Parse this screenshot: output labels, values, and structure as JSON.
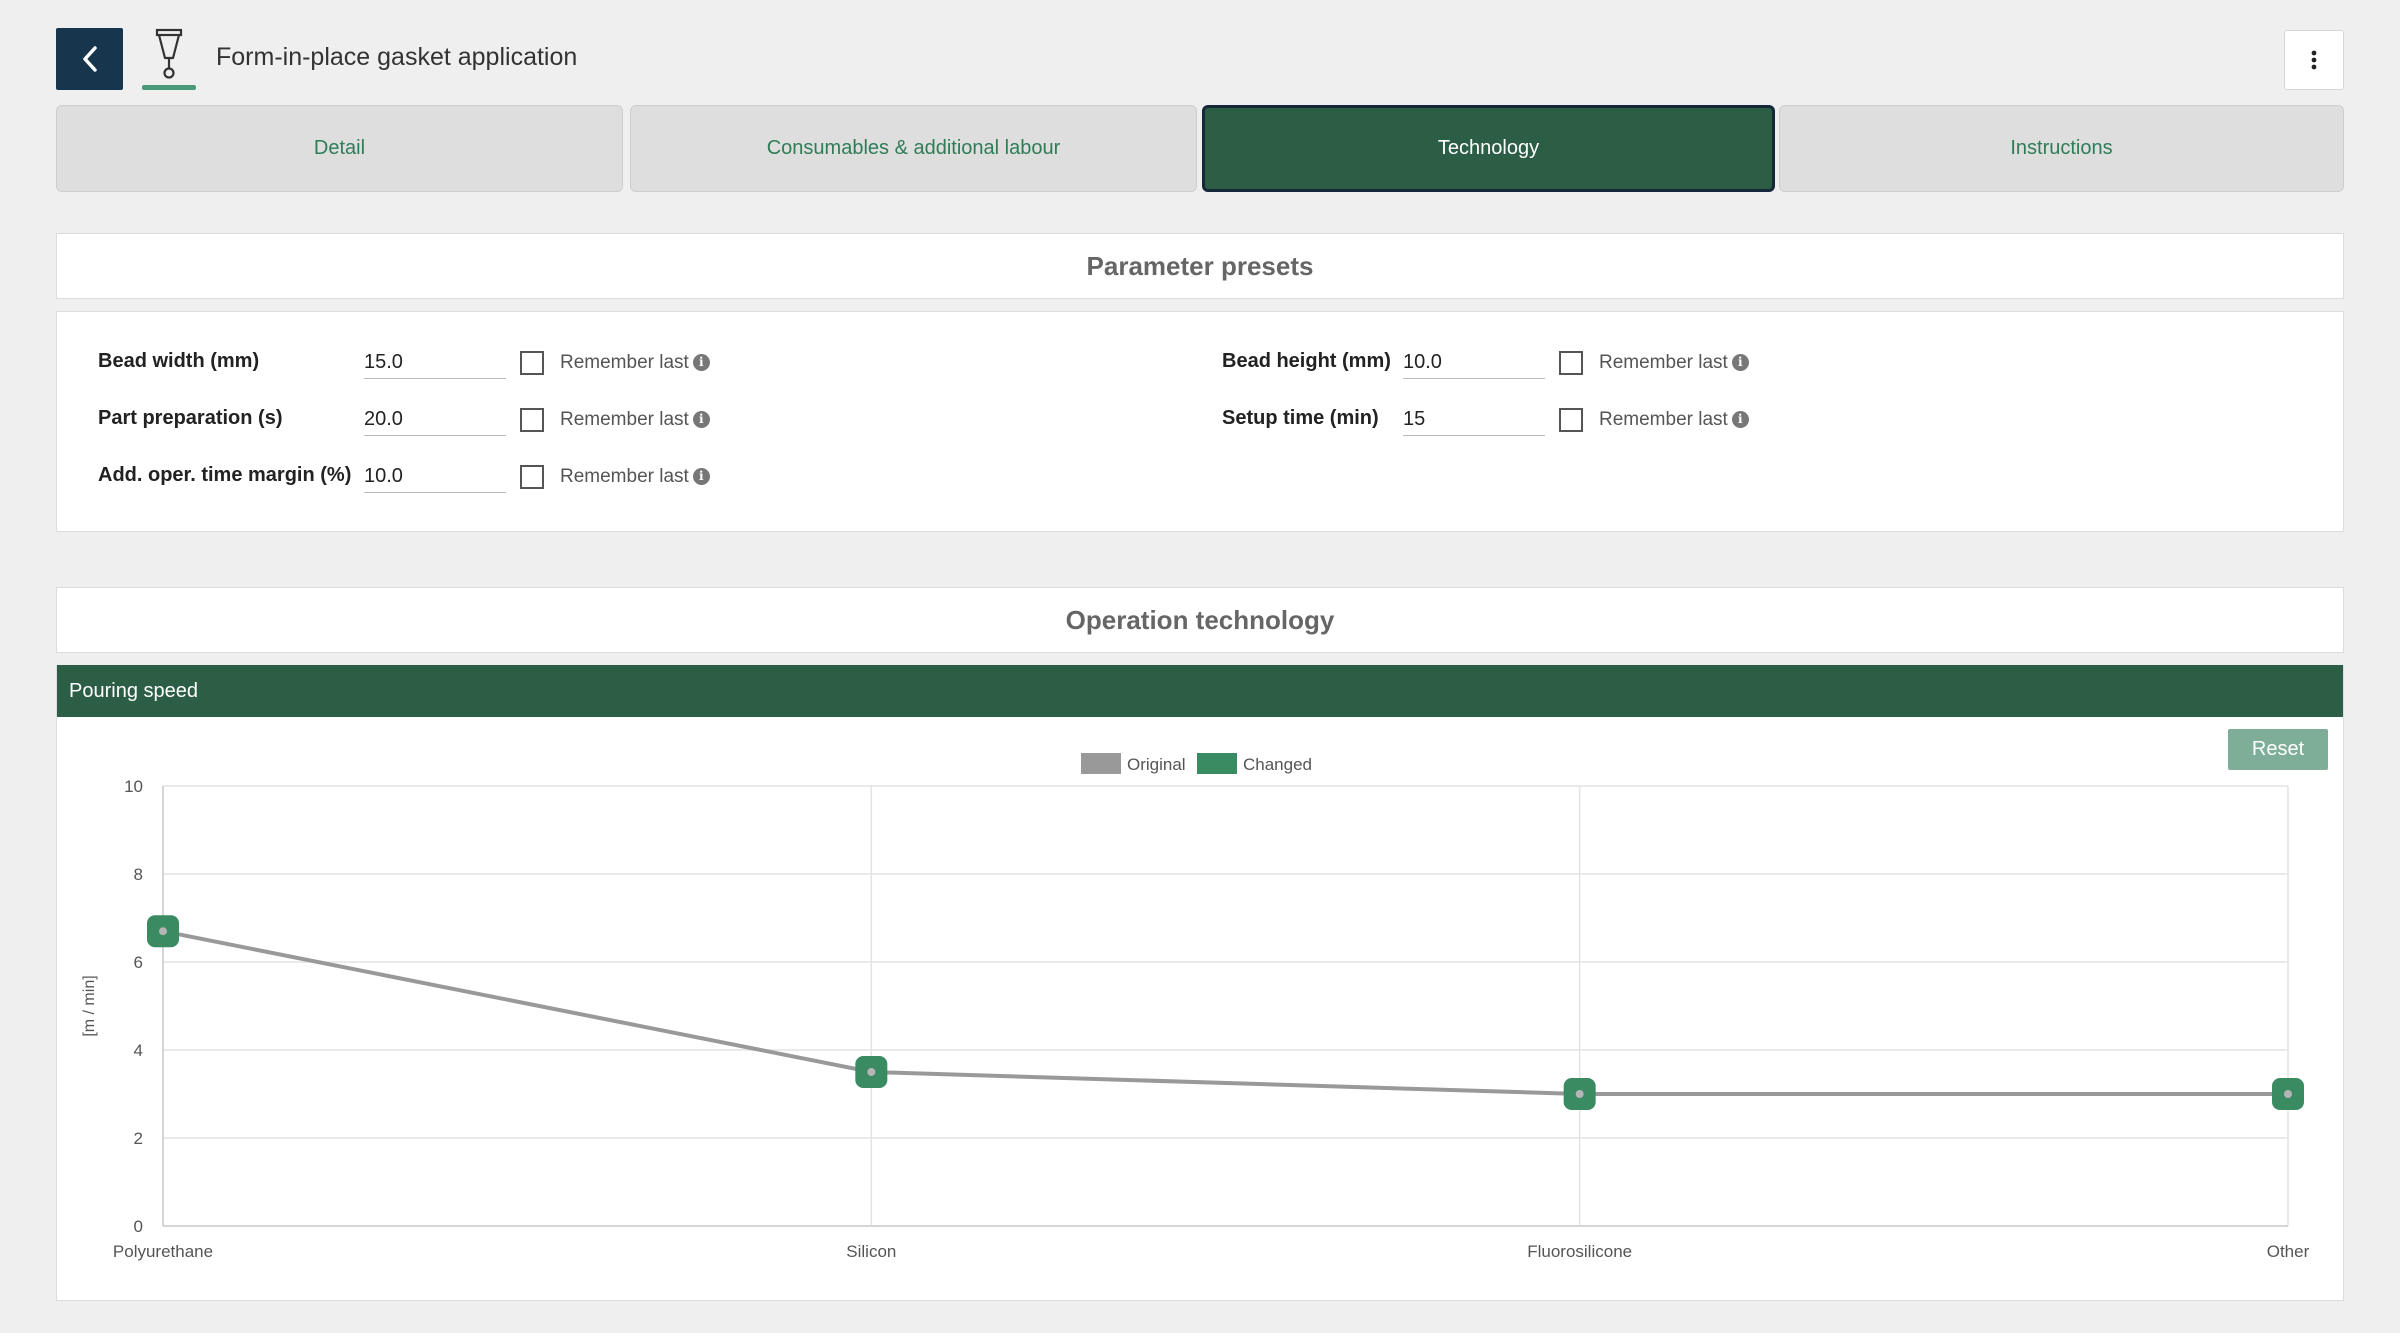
{
  "header": {
    "title": "Form-in-place gasket application",
    "back_icon": "chevron-left-icon",
    "tool_icon": "dispenser-nozzle-icon",
    "menu_icon": "more-vertical-icon"
  },
  "tabs": [
    {
      "label": "Detail",
      "active": false
    },
    {
      "label": "Consumables & additional labour",
      "active": false
    },
    {
      "label": "Technology",
      "active": true
    },
    {
      "label": "Instructions",
      "active": false
    }
  ],
  "presets": {
    "title": "Parameter presets",
    "remember_label": "Remember last",
    "fields": [
      {
        "label": "Bead width (mm)",
        "value": "15.0",
        "remember": false
      },
      {
        "label": "Part preparation (s)",
        "value": "20.0",
        "remember": false
      },
      {
        "label": "Add. oper. time margin (%)",
        "value": "10.0",
        "remember": false
      },
      {
        "label": "Bead height (mm)",
        "value": "10.0",
        "remember": false
      },
      {
        "label": "Setup time (min)",
        "value": "15",
        "remember": false
      }
    ]
  },
  "operation": {
    "title": "Operation technology",
    "chart_header": "Pouring speed",
    "reset_label": "Reset"
  },
  "colors": {
    "primary": "#2b5e45",
    "original": "#999999",
    "changed": "#3a8a62",
    "back_button": "#17354d"
  },
  "chart_data": {
    "type": "line",
    "title": "",
    "xlabel": "",
    "ylabel": "[m / min]",
    "ylim": [
      0,
      10
    ],
    "yticks": [
      0,
      2,
      4,
      6,
      8,
      10
    ],
    "categories": [
      "Polyurethane",
      "Silicon",
      "Fluorosilicone",
      "Other"
    ],
    "legend_position": "top",
    "grid": true,
    "series": [
      {
        "name": "Original",
        "values": [
          6.7,
          3.5,
          3.0,
          3.0
        ]
      },
      {
        "name": "Changed",
        "values": [
          6.7,
          3.5,
          3.0,
          3.0
        ]
      }
    ]
  }
}
